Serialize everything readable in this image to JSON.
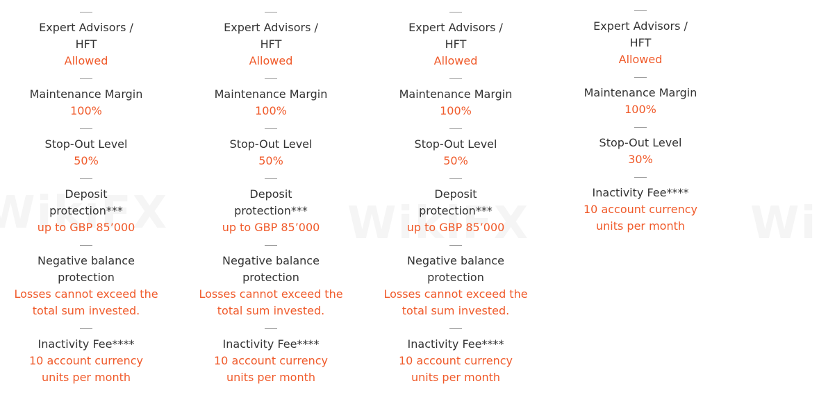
{
  "colors": {
    "label": "#333333",
    "value": "#f05a2a"
  },
  "watermark": "WikiFX",
  "columns": [
    {
      "items": [
        {
          "label": "Expert Advisors / HFT",
          "value": "Allowed"
        },
        {
          "label": "Maintenance Margin",
          "value": "100%"
        },
        {
          "label": "Stop-Out Level",
          "value": "50%"
        },
        {
          "label": "Deposit protection***",
          "value": "up to GBP 85’000"
        },
        {
          "label": "Negative balance protection",
          "value": "Losses cannot exceed the total sum invested."
        },
        {
          "label": "Inactivity Fee****",
          "value": "10 account currency units per month"
        }
      ]
    },
    {
      "items": [
        {
          "label": "Expert Advisors / HFT",
          "value": "Allowed"
        },
        {
          "label": "Maintenance Margin",
          "value": "100%"
        },
        {
          "label": "Stop-Out Level",
          "value": "50%"
        },
        {
          "label": "Deposit protection***",
          "value": "up to GBP 85’000"
        },
        {
          "label": "Negative balance protection",
          "value": "Losses cannot exceed the total sum invested."
        },
        {
          "label": "Inactivity Fee****",
          "value": "10 account currency units per month"
        }
      ]
    },
    {
      "items": [
        {
          "label": "Expert Advisors / HFT",
          "value": "Allowed"
        },
        {
          "label": "Maintenance Margin",
          "value": "100%"
        },
        {
          "label": "Stop-Out Level",
          "value": "50%"
        },
        {
          "label": "Deposit protection***",
          "value": "up to GBP 85’000"
        },
        {
          "label": "Negative balance protection",
          "value": "Losses cannot exceed the total sum invested."
        },
        {
          "label": "Inactivity Fee****",
          "value": "10 account currency units per month"
        }
      ]
    },
    {
      "items": [
        {
          "label": "Expert Advisors / HFT",
          "value": "Allowed"
        },
        {
          "label": "Maintenance Margin",
          "value": "100%"
        },
        {
          "label": "Stop-Out Level",
          "value": "30%"
        },
        {
          "label": "Inactivity Fee****",
          "value": "10 account currency units per month"
        }
      ]
    }
  ]
}
